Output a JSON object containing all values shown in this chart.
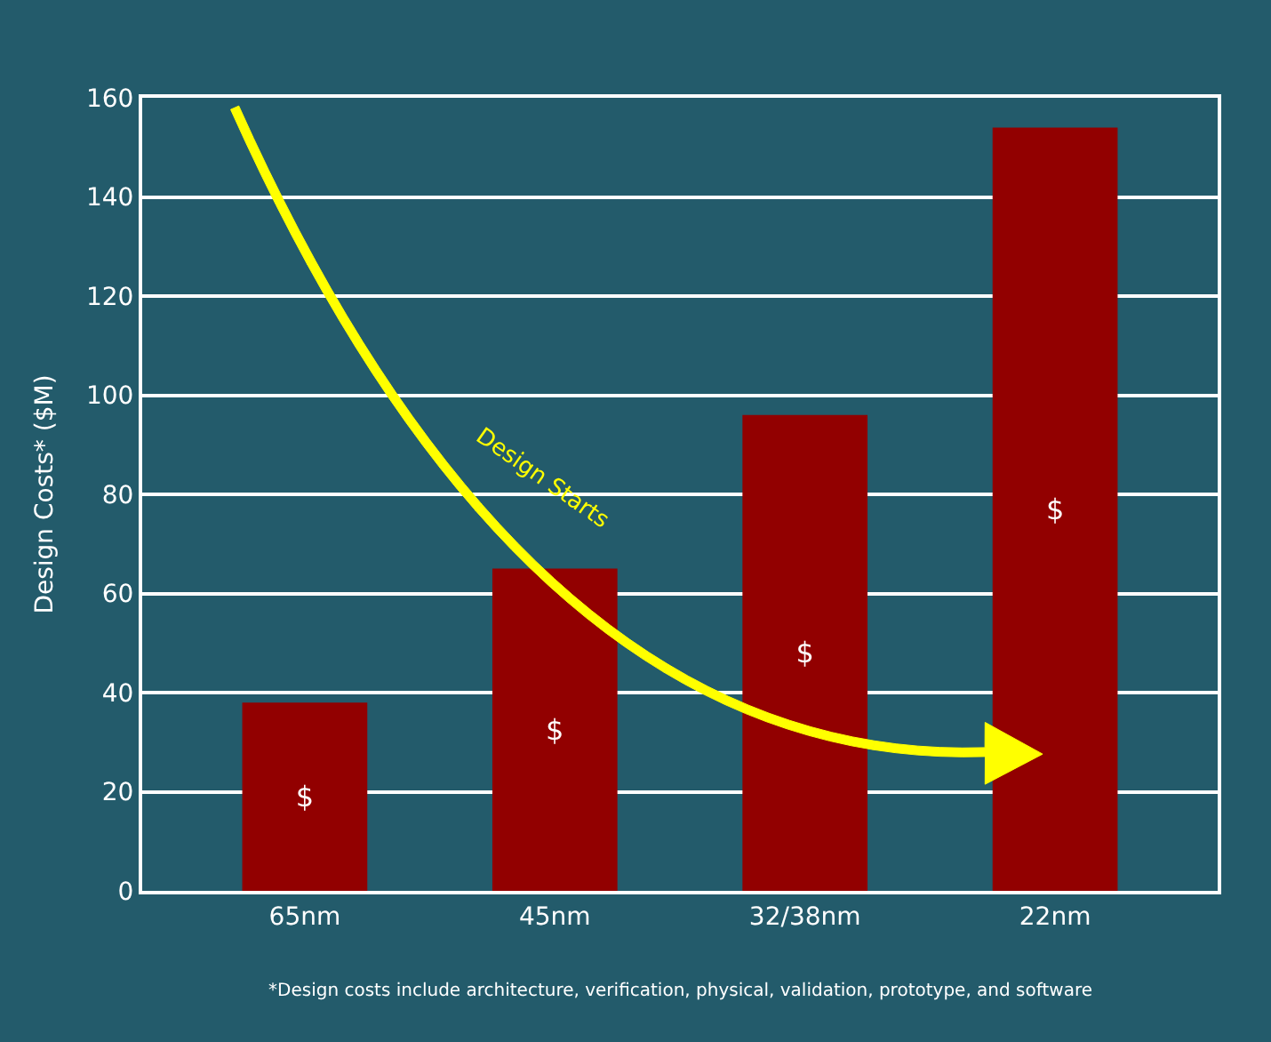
{
  "chart_data": {
    "type": "bar",
    "ylabel": "Design Costs* ($M)",
    "categories": [
      "65nm",
      "45nm",
      "32/38nm",
      "22nm"
    ],
    "values": [
      38,
      65,
      96,
      154
    ],
    "color": "#920000",
    "value_labels": [
      "$",
      "$",
      "$",
      "$"
    ],
    "ylim": [
      0,
      160
    ],
    "yticks": [
      0,
      20,
      40,
      60,
      80,
      100,
      120,
      140,
      160
    ],
    "grid": "y",
    "annotations": [
      "Design Starts",
      "*Design costs include architecture, verification, physical, validation, prototype, and software"
    ]
  }
}
